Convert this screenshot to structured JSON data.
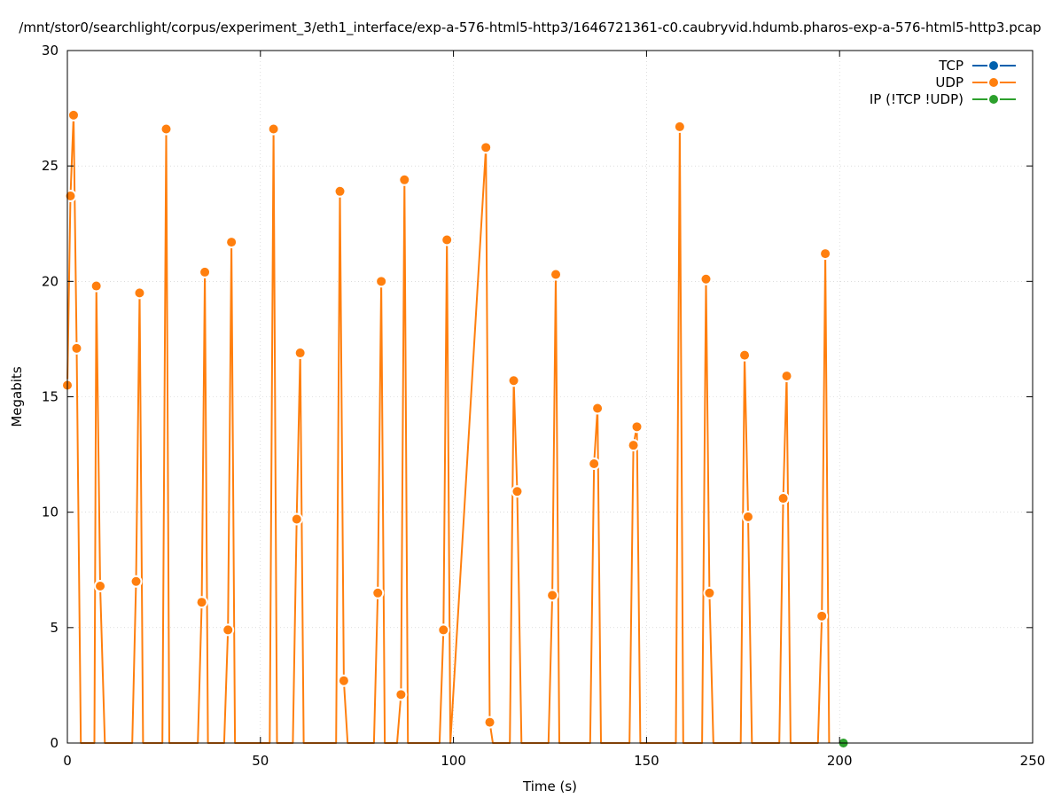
{
  "chart_data": {
    "type": "line",
    "title": "/mnt/stor0/searchlight/corpus/experiment_3/eth1_interface/exp-a-576-html5-http3/1646721361-c0.caubryvid.hdumb.pharos-exp-a-576-html5-http3.pcap",
    "xlabel": "Time (s)",
    "ylabel": "Megabits",
    "xlim": [
      0,
      250
    ],
    "ylim": [
      0,
      30
    ],
    "xticks": [
      0,
      50,
      100,
      150,
      200,
      250
    ],
    "yticks": [
      0,
      5,
      10,
      15,
      20,
      25,
      30
    ],
    "grid": true,
    "legend_position": "top-right",
    "series": [
      {
        "name": "TCP",
        "color": "#0060ad",
        "points": []
      },
      {
        "name": "UDP",
        "color": "#ff7f0e",
        "points": [
          [
            0,
            15.5
          ],
          [
            0.8,
            23.7
          ],
          [
            1.6,
            27.2
          ],
          [
            2.4,
            17.1
          ],
          [
            3.5,
            0
          ],
          [
            7.0,
            0
          ],
          [
            7.5,
            19.8
          ],
          [
            8.5,
            6.8
          ],
          [
            9.7,
            0
          ],
          [
            16.8,
            0
          ],
          [
            17.8,
            7.0
          ],
          [
            18.7,
            19.5
          ],
          [
            19.6,
            0
          ],
          [
            24.6,
            0
          ],
          [
            25.6,
            26.6
          ],
          [
            26.4,
            0
          ],
          [
            33.8,
            0
          ],
          [
            34.8,
            6.1
          ],
          [
            35.6,
            20.4
          ],
          [
            36.4,
            0
          ],
          [
            40.6,
            0
          ],
          [
            41.6,
            4.9
          ],
          [
            42.5,
            21.7
          ],
          [
            43.4,
            0
          ],
          [
            52.4,
            0
          ],
          [
            53.4,
            26.6
          ],
          [
            54.3,
            0
          ],
          [
            58.4,
            0
          ],
          [
            59.4,
            9.7
          ],
          [
            60.3,
            16.9
          ],
          [
            61.2,
            0
          ],
          [
            69.6,
            0
          ],
          [
            70.6,
            23.9
          ],
          [
            71.6,
            2.7
          ],
          [
            72.6,
            0
          ],
          [
            79.4,
            0
          ],
          [
            80.4,
            6.5
          ],
          [
            81.3,
            20.0
          ],
          [
            82.2,
            0
          ],
          [
            85.4,
            0
          ],
          [
            86.4,
            2.1
          ],
          [
            87.3,
            24.4
          ],
          [
            88.2,
            0
          ],
          [
            96.4,
            0
          ],
          [
            97.4,
            4.9
          ],
          [
            98.3,
            21.8
          ],
          [
            99.2,
            0
          ],
          [
            108.4,
            25.8
          ],
          [
            109.4,
            0.9
          ],
          [
            110.2,
            0
          ],
          [
            114.6,
            0
          ],
          [
            115.6,
            15.7
          ],
          [
            116.5,
            10.9
          ],
          [
            117.6,
            0
          ],
          [
            124.6,
            0
          ],
          [
            125.6,
            6.4
          ],
          [
            126.5,
            20.3
          ],
          [
            127.4,
            0
          ],
          [
            135.4,
            0
          ],
          [
            136.4,
            12.1
          ],
          [
            137.3,
            14.5
          ],
          [
            138.2,
            0
          ],
          [
            145.6,
            0
          ],
          [
            146.6,
            12.9
          ],
          [
            147.5,
            13.7
          ],
          [
            148.4,
            0
          ],
          [
            157.6,
            0
          ],
          [
            158.6,
            26.7
          ],
          [
            159.5,
            0
          ],
          [
            164.4,
            0
          ],
          [
            165.4,
            20.1
          ],
          [
            166.3,
            6.5
          ],
          [
            167.3,
            0
          ],
          [
            174.4,
            0
          ],
          [
            175.4,
            16.8
          ],
          [
            176.3,
            9.8
          ],
          [
            177.3,
            0
          ],
          [
            184.4,
            0
          ],
          [
            185.4,
            10.6
          ],
          [
            186.3,
            15.9
          ],
          [
            187.3,
            0
          ],
          [
            194.4,
            0
          ],
          [
            195.4,
            5.5
          ],
          [
            196.3,
            21.2
          ],
          [
            197.3,
            0
          ]
        ]
      },
      {
        "name": "IP (!TCP  !UDP)",
        "color": "#2ca02c",
        "points": [
          [
            201,
            0
          ]
        ]
      }
    ]
  }
}
